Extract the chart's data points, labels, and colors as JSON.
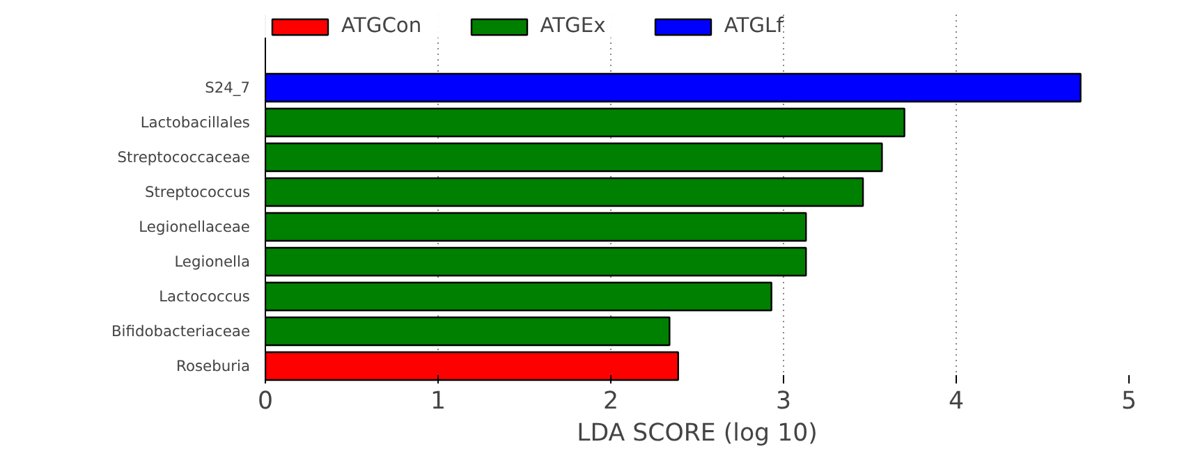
{
  "chart_data": {
    "type": "bar",
    "orientation": "horizontal",
    "xlabel": "LDA SCORE (log 10)",
    "categories": [
      "S24_7",
      "Lactobacillales",
      "Streptococcaceae",
      "Streptococcus",
      "Legionellaceae",
      "Legionella",
      "Lactococcus",
      "Bifidobacteriaceae",
      "Roseburia"
    ],
    "series": [
      {
        "name": "ATGCon",
        "color": "#ff0000",
        "values": [
          null,
          null,
          null,
          null,
          null,
          null,
          null,
          null,
          2.39
        ]
      },
      {
        "name": "ATGEx",
        "color": "#008000",
        "values": [
          null,
          3.7,
          3.57,
          3.46,
          3.13,
          3.13,
          2.93,
          2.34,
          null
        ]
      },
      {
        "name": "ATGLf",
        "color": "#0000ff",
        "values": [
          4.72,
          null,
          null,
          null,
          null,
          null,
          null,
          null,
          null
        ]
      }
    ],
    "xlim": [
      0,
      5
    ],
    "xticks": [
      0,
      1,
      2,
      3,
      4,
      5
    ],
    "grid": "x",
    "legend": "top"
  }
}
